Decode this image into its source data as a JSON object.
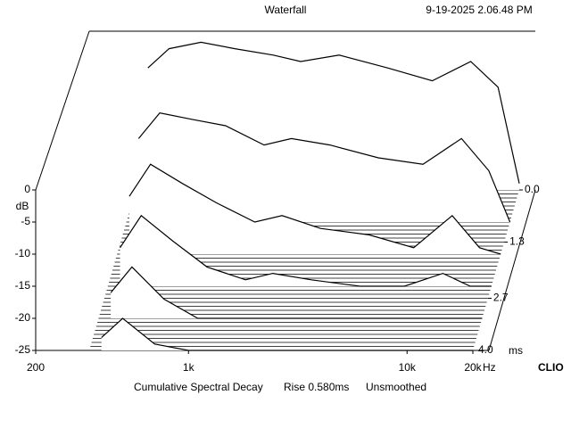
{
  "chart_data": {
    "type": "waterfall",
    "title": "Waterfall",
    "timestamp": "9-19-2025 2.06.48 PM",
    "subtitle": [
      "Cumulative Spectral Decay",
      "Rise 0.580ms",
      "Unsmoothed"
    ],
    "ylabel": "dB",
    "xlabel": "Hz",
    "zlabel": "ms",
    "brand": "CLIO",
    "x": [
      400,
      500,
      700,
      1000,
      1500,
      2000,
      3000,
      5000,
      8000,
      12000,
      16000,
      20000
    ],
    "slices": [
      {
        "t": 0,
        "values": [
          -6,
          -3,
          -2,
          -3,
          -4,
          -5,
          -4,
          -6,
          -8,
          -5,
          -9,
          -24
        ]
      },
      {
        "t": 0.8,
        "values": [
          -12,
          -8,
          -9,
          -10,
          -13,
          -12,
          -13,
          -15,
          -16,
          -12,
          -17,
          -25
        ]
      },
      {
        "t": 1.6,
        "values": [
          -16,
          -11,
          -14,
          -17,
          -20,
          -19,
          -21,
          -22,
          -24,
          -19,
          -24,
          -25
        ]
      },
      {
        "t": 2.4,
        "values": [
          -19,
          -14,
          -18,
          -22,
          -24,
          -23,
          -24,
          -25,
          -25,
          -23,
          -25,
          -25
        ]
      },
      {
        "t": 3.2,
        "values": [
          -21,
          -17,
          -22,
          -25,
          -25,
          -25,
          -25,
          -25,
          -25,
          -25,
          -25,
          -25
        ]
      },
      {
        "t": 4,
        "values": [
          -23,
          -20,
          -24,
          -25,
          -25,
          -25,
          -25,
          -25,
          -25,
          -25,
          -25,
          -25
        ]
      }
    ],
    "xlim": [
      200,
      20000
    ],
    "xticks": [
      200,
      {
        "value": 1000,
        "label": "1k"
      },
      {
        "value": 10000,
        "label": "10k"
      },
      {
        "value": 20000,
        "label": "20k"
      }
    ],
    "log_x": true,
    "ylim": [
      -25,
      0
    ],
    "yticks": [
      0,
      -5,
      -10,
      -15,
      -20,
      -25
    ],
    "tlim": [
      0,
      4
    ],
    "tticks": [
      {
        "value": 0,
        "label": "0.0"
      },
      1.3,
      2.7,
      {
        "value": 4,
        "label": "4.0"
      }
    ]
  }
}
